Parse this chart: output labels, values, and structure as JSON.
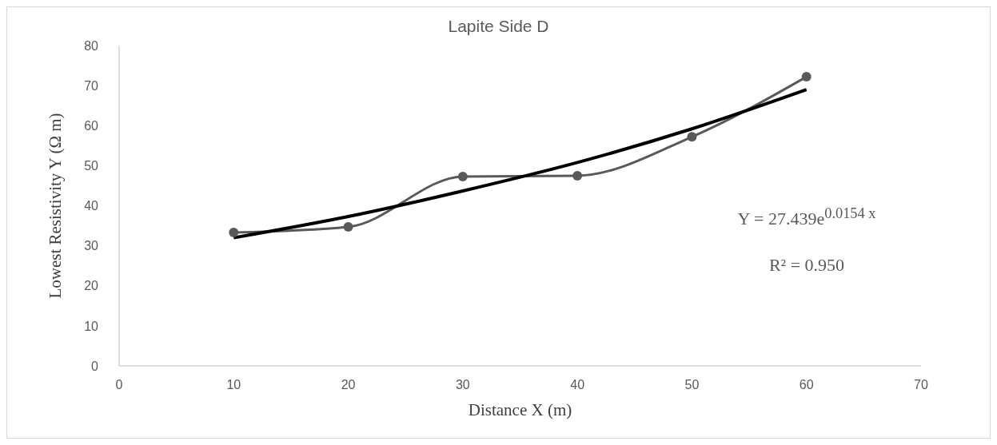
{
  "chart_data": {
    "type": "line",
    "title": "Lapite Side D",
    "xlabel": "Distance X (m)",
    "ylabel": "Lowest Resistivity Y (Ω m)",
    "series": [
      {
        "color": "#595959",
        "marker": "circle",
        "x": [
          10,
          20,
          30,
          40,
          50,
          60
        ],
        "values": [
          33.3,
          34.7,
          47.3,
          47.5,
          57.2,
          72.2
        ]
      },
      {
        "color": "#000000",
        "marker": "none",
        "x": [
          10,
          20,
          30,
          40,
          50,
          60
        ],
        "values": [
          32.0,
          37.3,
          43.7,
          50.8,
          59.2,
          69.0
        ]
      }
    ],
    "xlim": [
      0,
      70
    ],
    "xticks": [
      0,
      10,
      20,
      30,
      40,
      50,
      60,
      70
    ],
    "ylim": [
      0,
      80
    ],
    "yticks": [
      0,
      10,
      20,
      30,
      40,
      50,
      60,
      70,
      80
    ],
    "annotations": [
      "Y = 27.439e$^{0.0154 x}$",
      "R² = 0.950"
    ],
    "grid": false,
    "line_style": "solid"
  }
}
